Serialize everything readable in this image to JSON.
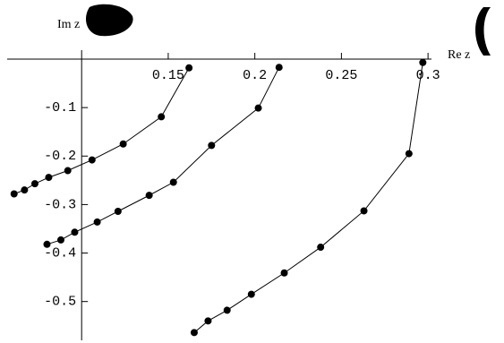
{
  "chart_data": {
    "type": "line",
    "x_label": "Re z",
    "y_label": "Im z",
    "xlim": [
      0.057,
      0.302
    ],
    "ylim": [
      -0.58,
      0
    ],
    "xticks": [
      0.15,
      0.2,
      0.25,
      {
        "value": 0.3,
        "label": "0.3"
      }
    ],
    "yticks": [
      -0.1,
      -0.2,
      -0.3,
      -0.4,
      -0.5
    ],
    "series": [
      {
        "color": "#000000",
        "x": [
          0.061,
          0.067,
          0.073,
          0.081,
          0.092,
          0.106,
          0.124,
          0.146,
          0.162
        ],
        "values": [
          -0.278,
          -0.27,
          -0.257,
          -0.244,
          -0.23,
          -0.208,
          -0.175,
          -0.119,
          -0.018
        ]
      },
      {
        "color": "#000000",
        "x": [
          0.08,
          0.088,
          0.096,
          0.109,
          0.121,
          0.139,
          0.153,
          0.175,
          0.202,
          0.214
        ],
        "values": [
          -0.382,
          -0.373,
          -0.357,
          -0.336,
          -0.314,
          -0.281,
          -0.254,
          -0.178,
          -0.101,
          -0.017
        ]
      },
      {
        "color": "#000000",
        "x": [
          0.165,
          0.173,
          0.184,
          0.198,
          0.217,
          0.238,
          0.263,
          0.289,
          0.297
        ],
        "values": [
          -0.564,
          -0.54,
          -0.518,
          -0.485,
          -0.441,
          -0.388,
          -0.313,
          -0.195,
          -0.007
        ]
      }
    ]
  }
}
